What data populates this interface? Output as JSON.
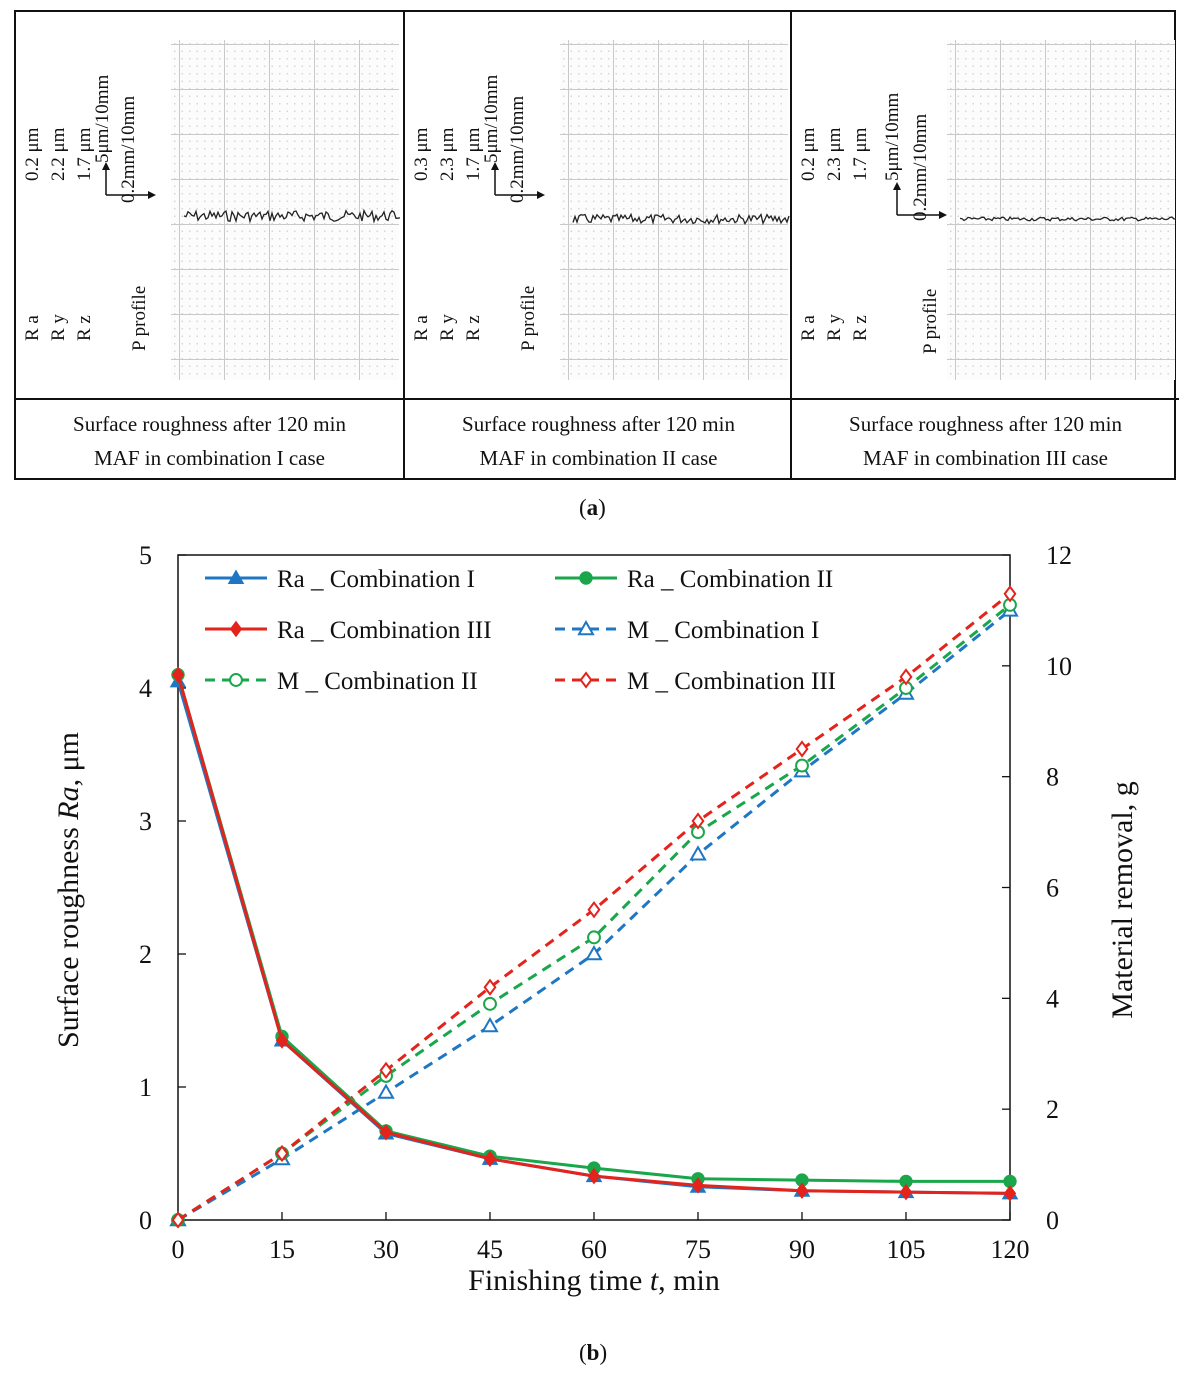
{
  "panel_a": {
    "label": "a",
    "panels": [
      {
        "ra": "0.2 μm",
        "ry": "2.2 μm",
        "rz": "1.7 μm",
        "ra_label": "R a",
        "ry_label": "R y",
        "rz_label": "R z",
        "v_scale": "5μm/10mm",
        "h_scale": "0.2mm/10mm",
        "profile_label": "P profile",
        "caption_line1": "Surface roughness after 120 min",
        "caption_line2": "MAF in combination I case",
        "profile_amplitude": 1.0
      },
      {
        "ra": "0.3 μm",
        "ry": "2.3 μm",
        "rz": "1.7 μm",
        "ra_label": "R a",
        "ry_label": "R y",
        "rz_label": "R z",
        "v_scale": "5μm/10mm",
        "h_scale": "0.2mm/10mm",
        "profile_label": "P profile",
        "caption_line1": "Surface roughness after 120 min",
        "caption_line2": "MAF in combination II case",
        "profile_amplitude": 0.85
      },
      {
        "ra": "0.2 μm",
        "ry": "2.3 μm",
        "rz": "1.7 μm",
        "ra_label": "R a",
        "ry_label": "R y",
        "rz_label": "R z",
        "v_scale": "5μm/10mm",
        "h_scale": "0.2mm/10mm",
        "profile_label": "P profile",
        "caption_line1": "Surface roughness after 120 min",
        "caption_line2": "MAF in combination III case",
        "profile_amplitude": 0.35
      }
    ]
  },
  "panel_b": {
    "label": "b"
  },
  "chart_data": {
    "type": "line",
    "title": "",
    "xlabel_prefix": "Finishing time ",
    "xlabel_var": "t",
    "xlabel_suffix": ", min",
    "ylabel_prefix": "Surface roughness ",
    "ylabel_var": "Ra",
    "ylabel_suffix": ", μm",
    "y2label": "Material removal, g",
    "x": [
      0,
      15,
      30,
      45,
      60,
      75,
      90,
      105,
      120
    ],
    "xlim": [
      0,
      120
    ],
    "ylim": [
      0,
      5
    ],
    "y2lim": [
      0,
      12
    ],
    "xticks": [
      "0",
      "15",
      "30",
      "45",
      "60",
      "75",
      "90",
      "105",
      "120"
    ],
    "yticks": [
      "0",
      "1",
      "2",
      "3",
      "4",
      "5"
    ],
    "y2ticks": [
      "0",
      "2",
      "4",
      "6",
      "8",
      "10",
      "12"
    ],
    "legend_position": "top-left",
    "series": [
      {
        "name": "Ra _ Combination I",
        "axis": "left",
        "color": "#1f77c4",
        "dash": "solid",
        "marker": "triangle-filled",
        "values": [
          4.05,
          1.35,
          0.65,
          0.46,
          0.33,
          0.25,
          0.22,
          0.21,
          0.2
        ]
      },
      {
        "name": "Ra _ Combination II",
        "axis": "left",
        "color": "#1aa64a",
        "dash": "solid",
        "marker": "circle-filled",
        "values": [
          4.1,
          1.38,
          0.67,
          0.48,
          0.39,
          0.31,
          0.3,
          0.29,
          0.29
        ]
      },
      {
        "name": "Ra _ Combination III",
        "axis": "left",
        "color": "#e3231c",
        "dash": "solid",
        "marker": "diamond-filled",
        "values": [
          4.1,
          1.35,
          0.66,
          0.46,
          0.33,
          0.26,
          0.22,
          0.21,
          0.2
        ]
      },
      {
        "name": "M _ Combination I",
        "axis": "right",
        "color": "#1f77c4",
        "dash": "dashed",
        "marker": "triangle-open",
        "values": [
          0,
          1.1,
          2.3,
          3.5,
          4.8,
          6.6,
          8.1,
          9.5,
          11.0
        ]
      },
      {
        "name": "M _ Combination II",
        "axis": "right",
        "color": "#1aa64a",
        "dash": "dashed",
        "marker": "circle-open",
        "values": [
          0,
          1.2,
          2.6,
          3.9,
          5.1,
          7.0,
          8.2,
          9.6,
          11.1
        ]
      },
      {
        "name": "M _ Combination III",
        "axis": "right",
        "color": "#e3231c",
        "dash": "dashed",
        "marker": "diamond-open",
        "values": [
          0,
          1.2,
          2.7,
          4.2,
          5.6,
          7.2,
          8.5,
          9.8,
          11.3
        ]
      }
    ]
  }
}
